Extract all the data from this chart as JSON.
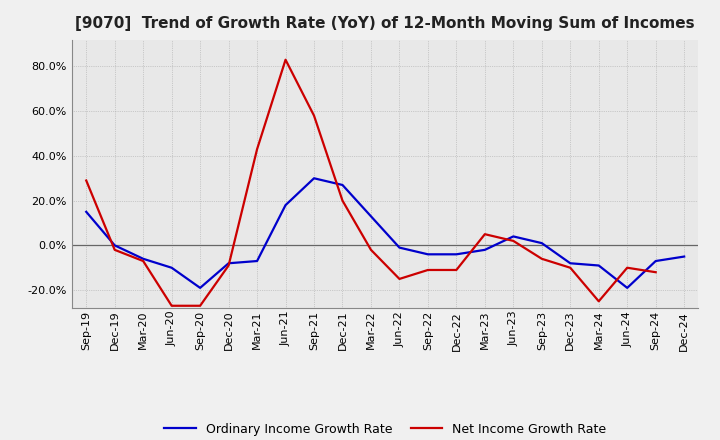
{
  "title": "[9070]  Trend of Growth Rate (YoY) of 12-Month Moving Sum of Incomes",
  "x_labels": [
    "Sep-19",
    "Dec-19",
    "Mar-20",
    "Jun-20",
    "Sep-20",
    "Dec-20",
    "Mar-21",
    "Jun-21",
    "Sep-21",
    "Dec-21",
    "Mar-22",
    "Jun-22",
    "Sep-22",
    "Dec-22",
    "Mar-23",
    "Jun-23",
    "Sep-23",
    "Dec-23",
    "Mar-24",
    "Jun-24",
    "Sep-24",
    "Dec-24"
  ],
  "ordinary_income": [
    0.15,
    0.0,
    -0.06,
    -0.1,
    -0.19,
    -0.08,
    -0.07,
    0.18,
    0.3,
    0.27,
    0.13,
    -0.01,
    -0.04,
    -0.04,
    -0.02,
    0.04,
    0.01,
    -0.08,
    -0.09,
    -0.19,
    -0.07,
    -0.05
  ],
  "net_income": [
    0.29,
    -0.02,
    -0.07,
    -0.27,
    -0.27,
    -0.09,
    0.43,
    0.83,
    0.58,
    0.2,
    -0.02,
    -0.15,
    -0.11,
    -0.11,
    0.05,
    0.02,
    -0.06,
    -0.1,
    -0.25,
    -0.1,
    -0.12,
    null
  ],
  "ordinary_color": "#0000cc",
  "net_color": "#cc0000",
  "ylim": [
    -0.28,
    0.92
  ],
  "yticks": [
    -0.2,
    0.0,
    0.2,
    0.4,
    0.6,
    0.8
  ],
  "bg_color": "#f0f0f0",
  "plot_bg_color": "#e8e8e8",
  "grid_color": "#aaaaaa",
  "legend_ordinary": "Ordinary Income Growth Rate",
  "legend_net": "Net Income Growth Rate",
  "title_fontsize": 11,
  "tick_fontsize": 8
}
